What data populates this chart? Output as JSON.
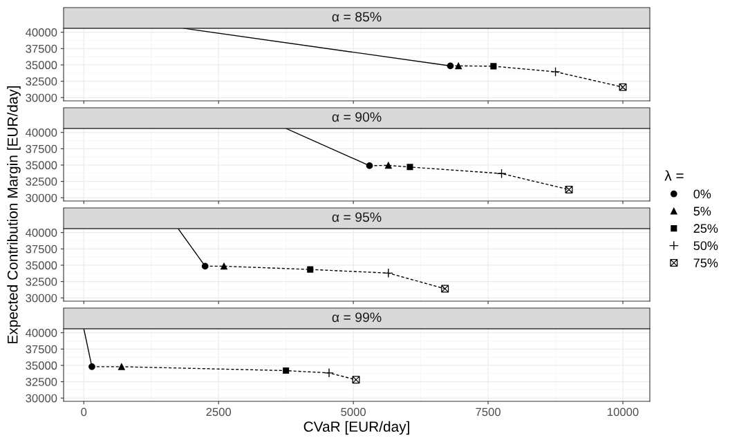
{
  "chart_data": [
    {
      "type": "line",
      "title": "α = 85%",
      "ylabel": "Expected Contribution Margin [EUR/day]",
      "legend": "right",
      "legend_title": "λ =",
      "xlim": [
        -375,
        10500
      ],
      "xticks": [
        0,
        2500,
        5000,
        7500,
        10000
      ],
      "ylim": [
        29500,
        40600
      ],
      "yticks": [
        30000,
        32500,
        35000,
        37500,
        40000
      ],
      "grid": true,
      "tick_labels": "y",
      "series": [
        {
          "line_style": "solid",
          "color": "#000000",
          "marker": "none",
          "x": [
            1850,
            6800
          ],
          "values": [
            40600,
            34850
          ]
        },
        {
          "line_style": "dashed",
          "color": "#000000",
          "marker": "none",
          "x": [
            6800,
            6950,
            7600,
            8750,
            10000
          ],
          "values": [
            34850,
            34850,
            34800,
            33950,
            31600
          ]
        },
        {
          "type": "scatter",
          "name": "0%",
          "marker": "circle",
          "color": "#000000",
          "x": [
            6800
          ],
          "values": [
            34850
          ]
        },
        {
          "type": "scatter",
          "name": "5%",
          "marker": "triangle",
          "color": "#000000",
          "x": [
            6950
          ],
          "values": [
            34850
          ]
        },
        {
          "type": "scatter",
          "name": "25%",
          "marker": "square",
          "color": "#000000",
          "x": [
            7600
          ],
          "values": [
            34800
          ]
        },
        {
          "type": "scatter",
          "name": "50%",
          "marker": "cross",
          "color": "#000000",
          "x": [
            8750
          ],
          "values": [
            33950
          ]
        },
        {
          "type": "scatter",
          "name": "75%",
          "color": "#000000",
          "x": [
            10000
          ],
          "values": [
            31600
          ]
        }
      ]
    },
    {
      "type": "line",
      "title": "α = 90%",
      "xlim": [
        -375,
        10500
      ],
      "xticks": [
        0,
        2500,
        5000,
        7500,
        10000
      ],
      "ylim": [
        29500,
        40600
      ],
      "yticks": [
        30000,
        32500,
        35000,
        37500,
        40000
      ],
      "grid": true,
      "tick_labels": "y",
      "series": [
        {
          "line_style": "solid",
          "color": "#000000",
          "marker": "none",
          "x": [
            3750,
            5300
          ],
          "values": [
            40600,
            34900
          ]
        },
        {
          "line_style": "dashed",
          "color": "#000000",
          "marker": "none",
          "x": [
            5300,
            5650,
            6050,
            7750,
            9000
          ],
          "values": [
            34900,
            34950,
            34700,
            33700,
            31250
          ]
        },
        {
          "type": "scatter",
          "name": "0%",
          "marker": "circle",
          "color": "#000000",
          "x": [
            5300
          ],
          "values": [
            34900
          ]
        },
        {
          "type": "scatter",
          "name": "5%",
          "marker": "triangle",
          "color": "#000000",
          "x": [
            5650
          ],
          "values": [
            34950
          ]
        },
        {
          "type": "scatter",
          "name": "25%",
          "marker": "square",
          "color": "#000000",
          "x": [
            6050
          ],
          "values": [
            34700
          ]
        },
        {
          "type": "scatter",
          "name": "50%",
          "marker": "cross",
          "color": "#000000",
          "x": [
            7750
          ],
          "values": [
            33700
          ]
        },
        {
          "type": "scatter",
          "name": "75%",
          "color": "#000000",
          "x": [
            9000
          ],
          "values": [
            31250
          ]
        }
      ]
    },
    {
      "type": "line",
      "title": "α = 95%",
      "xlim": [
        -375,
        10500
      ],
      "xticks": [
        0,
        2500,
        5000,
        7500,
        10000
      ],
      "ylim": [
        29500,
        40600
      ],
      "yticks": [
        30000,
        32500,
        35000,
        37500,
        40000
      ],
      "grid": true,
      "tick_labels": "y",
      "series": [
        {
          "line_style": "solid",
          "color": "#000000",
          "marker": "none",
          "x": [
            1750,
            2250
          ],
          "values": [
            40600,
            34850
          ]
        },
        {
          "line_style": "dashed",
          "color": "#000000",
          "marker": "none",
          "x": [
            2250,
            2600,
            4200,
            5650,
            6700
          ],
          "values": [
            34850,
            34850,
            34350,
            33800,
            31400
          ]
        },
        {
          "type": "scatter",
          "name": "0%",
          "marker": "circle",
          "color": "#000000",
          "x": [
            2250
          ],
          "values": [
            34850
          ]
        },
        {
          "type": "scatter",
          "name": "5%",
          "marker": "triangle",
          "color": "#000000",
          "x": [
            2600
          ],
          "values": [
            34850
          ]
        },
        {
          "type": "scatter",
          "name": "25%",
          "marker": "square",
          "color": "#000000",
          "x": [
            4200
          ],
          "values": [
            34350
          ]
        },
        {
          "type": "scatter",
          "name": "50%",
          "marker": "cross",
          "color": "#000000",
          "x": [
            5650
          ],
          "values": [
            33800
          ]
        },
        {
          "type": "scatter",
          "name": "75%",
          "color": "#000000",
          "x": [
            6700
          ],
          "values": [
            31400
          ]
        }
      ]
    },
    {
      "type": "line",
      "title": "α = 99%",
      "xlabel": "CVaR [EUR/day]",
      "xlim": [
        -375,
        10500
      ],
      "xticks": [
        0,
        2500,
        5000,
        7500,
        10000
      ],
      "ylim": [
        29500,
        40600
      ],
      "yticks": [
        30000,
        32500,
        35000,
        37500,
        40000
      ],
      "grid": true,
      "series": [
        {
          "line_style": "solid",
          "color": "#000000",
          "marker": "none",
          "x": [
            0,
            150
          ],
          "values": [
            40600,
            34800
          ]
        },
        {
          "line_style": "dashed",
          "color": "#000000",
          "marker": "none",
          "x": [
            150,
            700,
            3750,
            4550,
            5050
          ],
          "values": [
            34800,
            34800,
            34200,
            33850,
            32800
          ]
        },
        {
          "type": "scatter",
          "name": "0%",
          "marker": "circle",
          "color": "#000000",
          "x": [
            150
          ],
          "values": [
            34800
          ]
        },
        {
          "type": "scatter",
          "name": "5%",
          "marker": "triangle",
          "color": "#000000",
          "x": [
            700
          ],
          "values": [
            34800
          ]
        },
        {
          "type": "scatter",
          "name": "25%",
          "marker": "square",
          "color": "#000000",
          "x": [
            3750
          ],
          "values": [
            34200
          ]
        },
        {
          "type": "scatter",
          "name": "50%",
          "marker": "cross",
          "color": "#000000",
          "x": [
            4550
          ],
          "values": [
            33850
          ]
        },
        {
          "type": "scatter",
          "name": "75%",
          "color": "#000000",
          "x": [
            5050
          ],
          "values": [
            32800
          ]
        }
      ]
    }
  ]
}
